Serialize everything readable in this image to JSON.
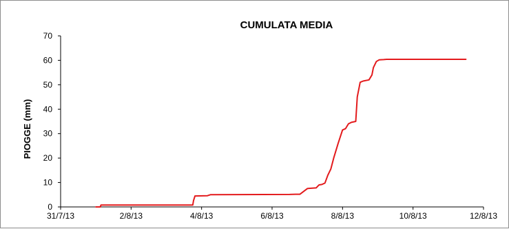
{
  "chart_data": {
    "type": "line",
    "title": "CUMULATA MEDIA",
    "xlabel": "",
    "ylabel": "PIOGGE (mm)",
    "ylim": [
      0,
      70
    ],
    "yticks": [
      0,
      10,
      20,
      30,
      40,
      50,
      60,
      70
    ],
    "xlim": [
      "2013-07-31",
      "2013-08-12"
    ],
    "xticks": [
      {
        "date": "2013-07-31",
        "label": "31/7/13"
      },
      {
        "date": "2013-08-02",
        "label": "2/8/13"
      },
      {
        "date": "2013-08-04",
        "label": "4/8/13"
      },
      {
        "date": "2013-08-06",
        "label": "6/8/13"
      },
      {
        "date": "2013-08-08",
        "label": "8/8/13"
      },
      {
        "date": "2013-08-10",
        "label": "10/8/13"
      },
      {
        "date": "2013-08-12",
        "label": "12/8/13"
      }
    ],
    "grid": false,
    "legend": "none",
    "series": [
      {
        "color": "#e31a1c",
        "x": [
          "2013-08-01 00:00",
          "2013-08-01 03:00",
          "2013-08-01 03:30",
          "2013-08-03 18:00",
          "2013-08-03 18:30",
          "2013-08-03 19:30",
          "2013-08-04 04:00",
          "2013-08-04 06:00",
          "2013-08-06 12:00",
          "2013-08-06 16:00",
          "2013-08-06 19:00",
          "2013-08-07 00:00",
          "2013-08-07 01:00",
          "2013-08-07 06:00",
          "2013-08-07 08:00",
          "2013-08-07 10:00",
          "2013-08-07 12:00",
          "2013-08-07 14:00",
          "2013-08-07 16:00",
          "2013-08-07 18:00",
          "2013-08-07 21:00",
          "2013-08-08 00:00",
          "2013-08-08 02:00",
          "2013-08-08 04:00",
          "2013-08-08 06:00",
          "2013-08-08 09:00",
          "2013-08-08 10:00",
          "2013-08-08 12:00",
          "2013-08-08 14:00",
          "2013-08-08 18:00",
          "2013-08-08 20:00",
          "2013-08-08 21:00",
          "2013-08-08 23:00",
          "2013-08-09 01:00",
          "2013-08-09 04:00",
          "2013-08-09 06:00",
          "2013-08-09 08:00",
          "2013-08-11 12:00"
        ],
        "y": [
          0,
          0,
          0.8,
          0.8,
          2.5,
          4.5,
          4.6,
          5,
          5.1,
          5.2,
          5.2,
          7.5,
          7.6,
          7.8,
          9,
          9.2,
          9.8,
          13,
          15.5,
          20,
          26,
          31.5,
          32,
          34,
          34.6,
          35,
          45,
          51,
          51.5,
          52,
          54,
          57,
          59.5,
          60.2,
          60.3,
          60.4,
          60.4,
          60.4
        ]
      }
    ]
  }
}
